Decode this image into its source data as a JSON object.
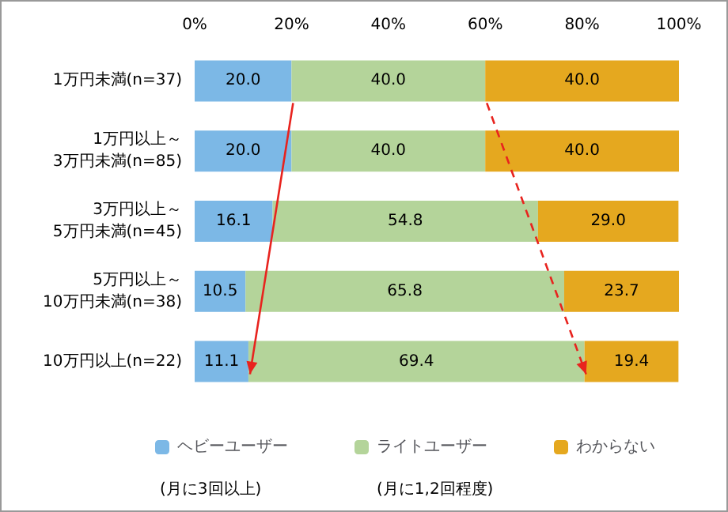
{
  "chart_data": {
    "type": "bar",
    "orientation": "horizontal",
    "stacked": true,
    "categories": [
      "1万円未満(n=37)",
      "1万円以上～3万円未満(n=85)",
      "3万円以上～5万円未満(n=45)",
      "5万円以上～10万円未満(n=38)",
      "10万円以上(n=22)"
    ],
    "series": [
      {
        "name": "ヘビーユーザー",
        "color": "#7cb8e6",
        "values": [
          20.0,
          20.0,
          16.1,
          10.5,
          11.1
        ],
        "value_labels": [
          "20.0",
          "20.0",
          "16.1",
          "10.5",
          "11.1"
        ]
      },
      {
        "name": "ライトユーザー",
        "color": "#b4d49a",
        "values": [
          40.0,
          40.0,
          54.8,
          65.8,
          69.4
        ],
        "value_labels": [
          "40.0",
          "40.0",
          "54.8",
          "65.8",
          "69.4"
        ]
      },
      {
        "name": "わからない",
        "color": "#e5a81f",
        "values": [
          40.0,
          40.0,
          29.0,
          23.7,
          19.4
        ],
        "value_labels": [
          "40.0",
          "40.0",
          "29.0",
          "23.7",
          "19.4"
        ]
      }
    ],
    "xlim": [
      0,
      100
    ],
    "xticks": [
      {
        "value": 0,
        "label": "0%"
      },
      {
        "value": 20,
        "label": "20%"
      },
      {
        "value": 40,
        "label": "40%"
      },
      {
        "value": 60,
        "label": "60%"
      },
      {
        "value": 80,
        "label": "80%"
      },
      {
        "value": 100,
        "label": "100%"
      }
    ],
    "legend": "bottom",
    "annotations": [
      "(月に3回以上)",
      "(月に1,2回程度)"
    ]
  }
}
